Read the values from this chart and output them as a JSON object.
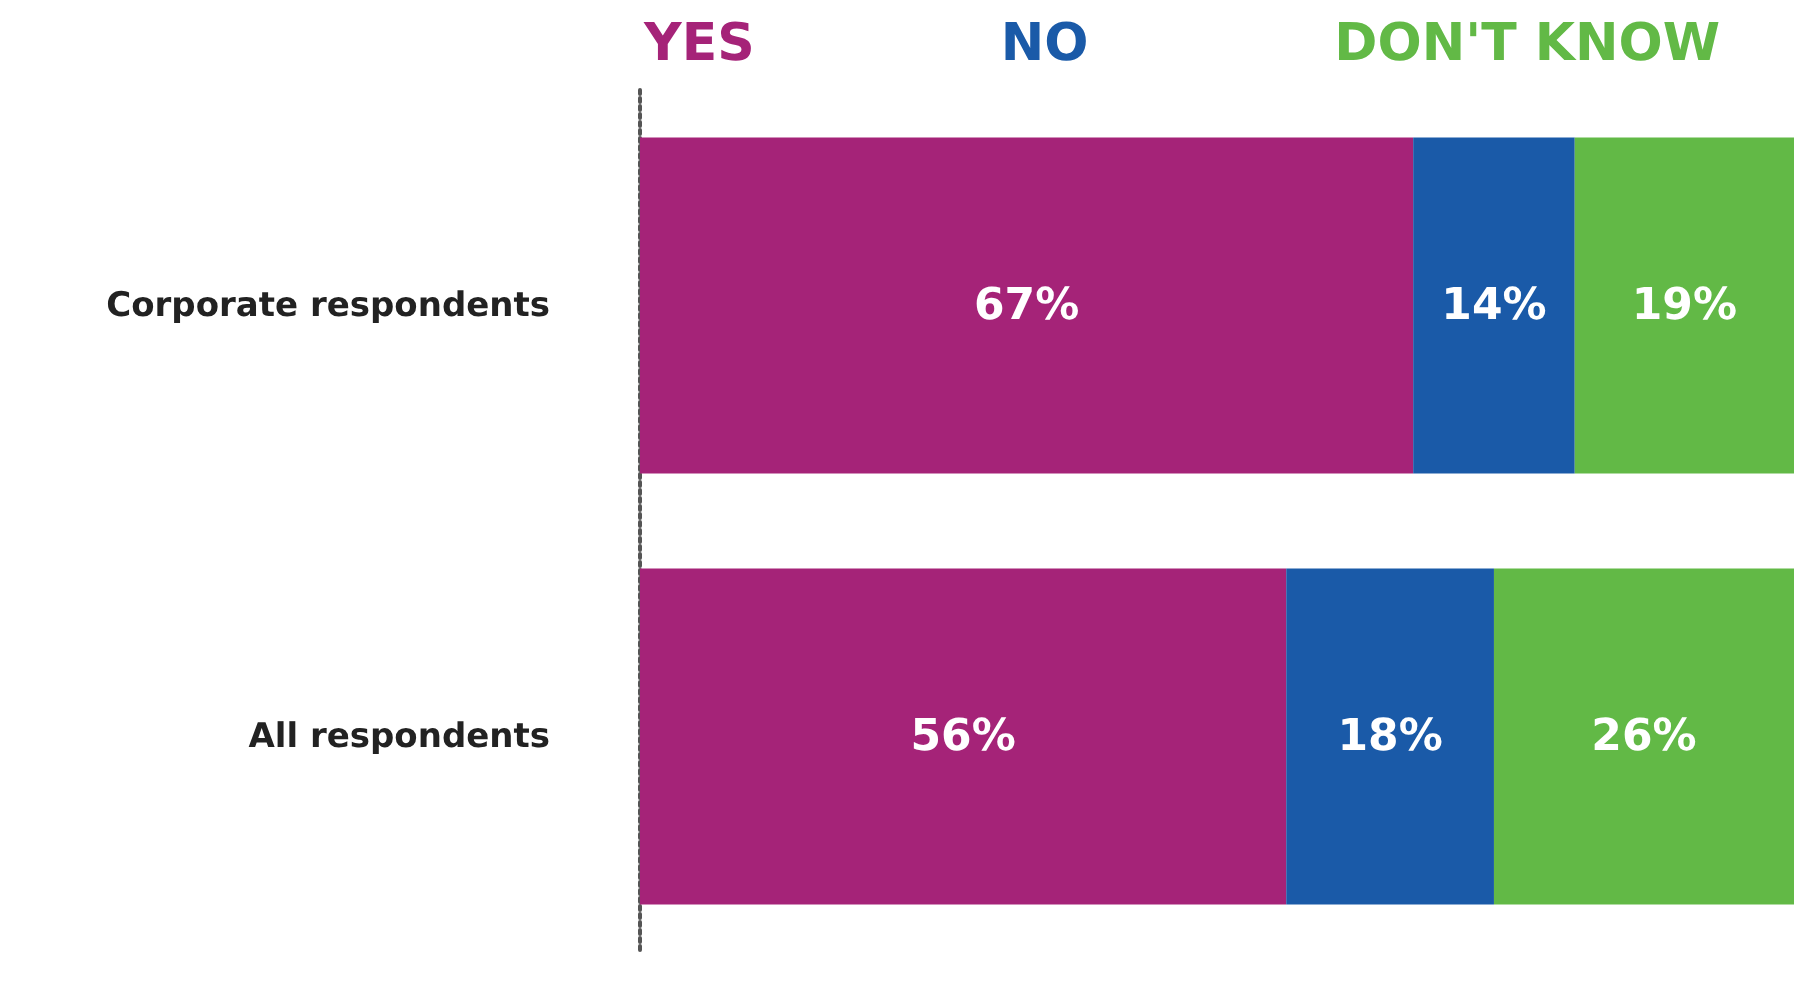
{
  "chart_data": {
    "type": "bar",
    "orientation": "horizontal",
    "stacked": true,
    "categories": [
      "Corporate respondents",
      "All respondents"
    ],
    "series": [
      {
        "name": "YES",
        "color": "#a52378",
        "values": [
          67,
          56
        ],
        "value_labels": [
          "67%",
          "56%"
        ]
      },
      {
        "name": "NO",
        "color": "#1a5aa8",
        "values": [
          14,
          18
        ],
        "value_labels": [
          "14%",
          "18%"
        ]
      },
      {
        "name": "DON'T KNOW",
        "color": "#62b946",
        "values": [
          19,
          26
        ],
        "value_labels": [
          "19%",
          "26%"
        ]
      }
    ],
    "xlim": [
      0,
      100
    ],
    "tick_labels": "y",
    "legend": "top"
  }
}
